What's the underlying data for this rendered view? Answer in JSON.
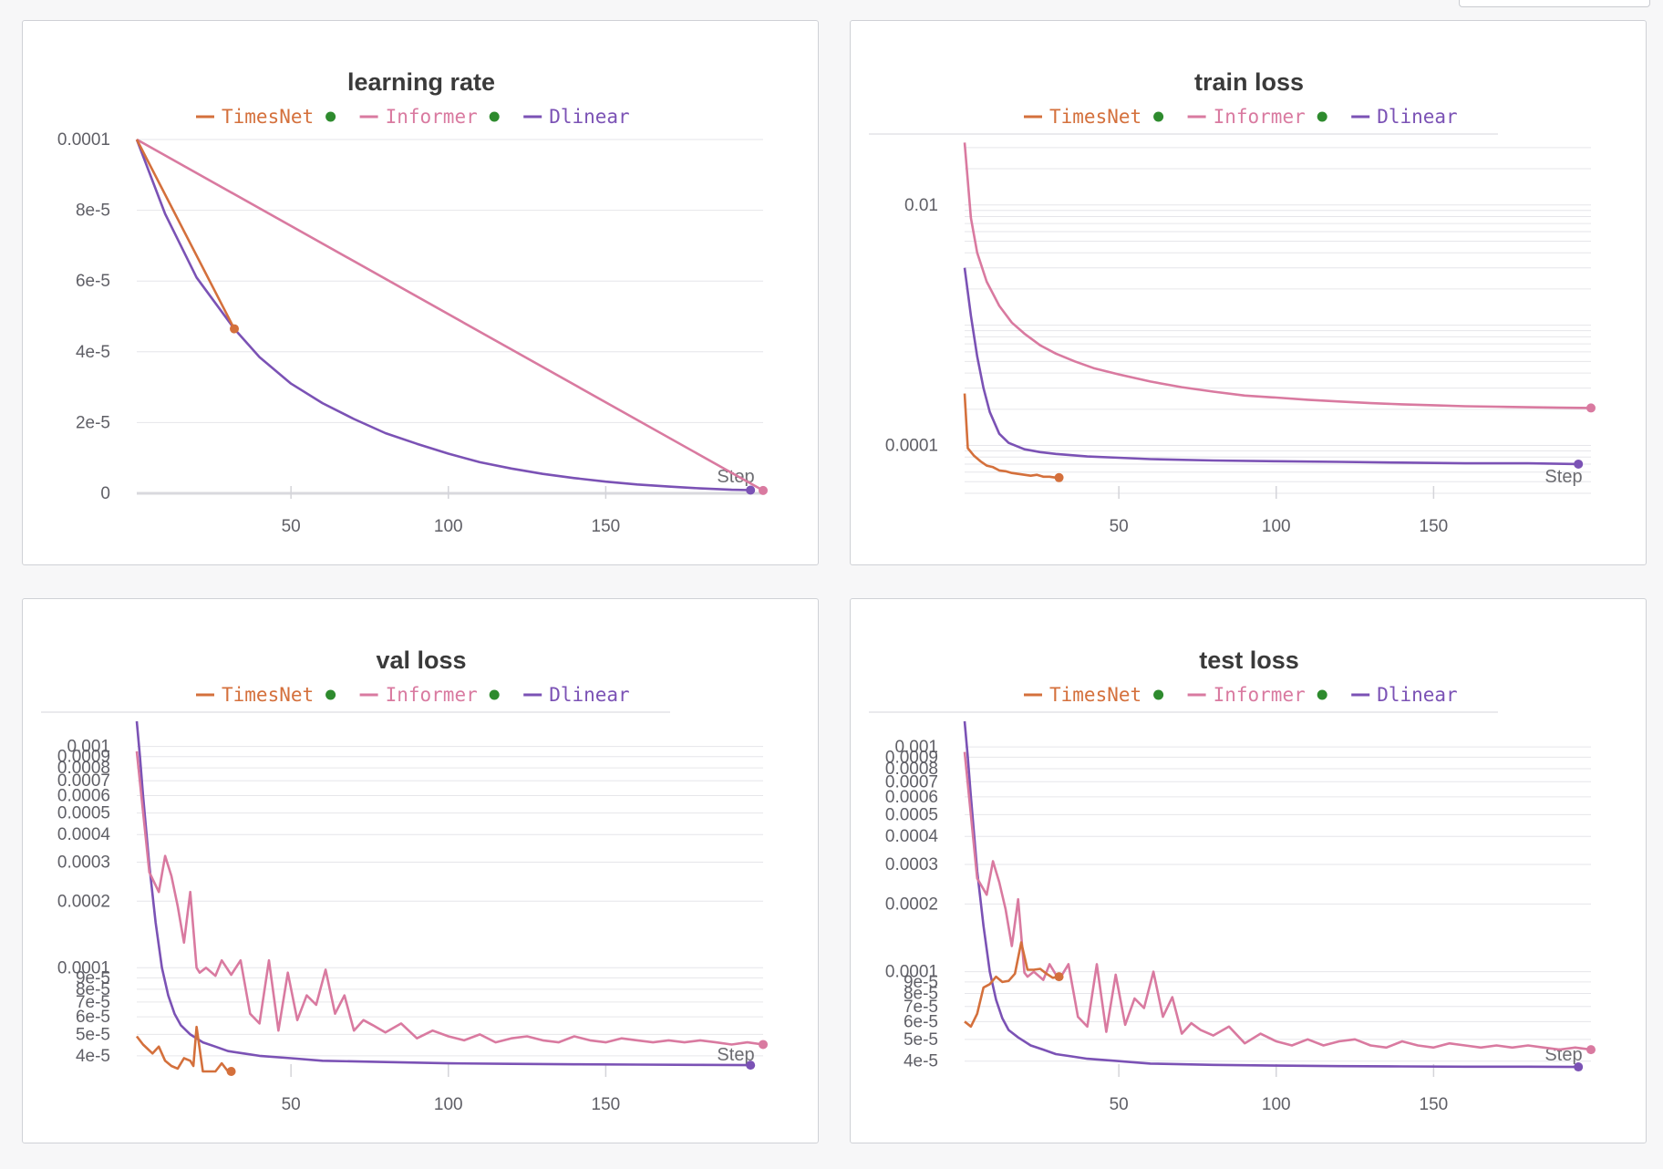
{
  "colors": {
    "TimesNet": "#d4703c",
    "Informer": "#d97aa0",
    "Dlinear": "#7b52b5",
    "legend_dot": "#2e8b2e",
    "grid": "#e6e6ea"
  },
  "x_axis_label": "Step",
  "chart_data": [
    {
      "type": "line",
      "title": "learning rate",
      "xlabel": "Step",
      "ylabel": "",
      "yscale": "linear",
      "xlim": [
        1,
        200
      ],
      "ylim": [
        0,
        0.0001
      ],
      "yticks": [
        {
          "v": 0.0001,
          "label": "0.0001"
        },
        {
          "v": 8e-05,
          "label": "8e-5"
        },
        {
          "v": 6e-05,
          "label": "6e-5"
        },
        {
          "v": 4e-05,
          "label": "4e-5"
        },
        {
          "v": 2e-05,
          "label": "2e-5"
        },
        {
          "v": 0,
          "label": "0"
        }
      ],
      "xticks": [
        50,
        100,
        150
      ],
      "legend": {
        "placement": "top",
        "entries": [
          "TimesNet",
          "Informer",
          "Dlinear"
        ],
        "active_dots": [
          true,
          true,
          false
        ]
      },
      "series": [
        {
          "name": "TimesNet",
          "x": [
            1,
            32
          ],
          "y": [
            0.0001,
            4.65e-05
          ]
        },
        {
          "name": "Informer",
          "x": [
            1,
            200
          ],
          "y": [
            0.0001,
            8e-07
          ]
        },
        {
          "name": "Dlinear",
          "x": [
            1,
            10,
            20,
            32,
            40,
            50,
            60,
            70,
            80,
            90,
            100,
            110,
            120,
            130,
            140,
            150,
            160,
            170,
            180,
            190,
            196
          ],
          "y": [
            0.0001,
            7.9e-05,
            6.1e-05,
            4.65e-05,
            3.85e-05,
            3.1e-05,
            2.55e-05,
            2.1e-05,
            1.7e-05,
            1.4e-05,
            1.12e-05,
            8.8e-06,
            7e-06,
            5.5e-06,
            4.3e-06,
            3.3e-06,
            2.5e-06,
            1.9e-06,
            1.4e-06,
            1e-06,
            9e-07
          ]
        }
      ],
      "endpoints": [
        "TimesNet",
        "Informer",
        "Dlinear"
      ]
    },
    {
      "type": "line",
      "title": "train loss",
      "xlabel": "Step",
      "ylabel": "",
      "yscale": "log",
      "xlim": [
        1,
        200
      ],
      "ylim": [
        4e-05,
        0.035
      ],
      "yticks": [
        {
          "v": 0.01,
          "label": "0.01"
        },
        {
          "v": 0.0001,
          "label": "0.0001"
        }
      ],
      "xticks": [
        50,
        100,
        150
      ],
      "legend": {
        "placement": "top",
        "entries": [
          "TimesNet",
          "Informer",
          "Dlinear"
        ],
        "active_dots": [
          true,
          true,
          false
        ]
      },
      "series": [
        {
          "name": "TimesNet",
          "x": [
            1,
            2,
            4,
            6,
            8,
            10,
            12,
            14,
            16,
            18,
            20,
            22,
            24,
            26,
            28,
            30,
            31
          ],
          "y": [
            0.00027,
            9.5e-05,
            8.2e-05,
            7.4e-05,
            6.8e-05,
            6.6e-05,
            6.2e-05,
            6.1e-05,
            5.9e-05,
            5.8e-05,
            5.7e-05,
            5.6e-05,
            5.7e-05,
            5.5e-05,
            5.5e-05,
            5.4e-05,
            5.4e-05
          ]
        },
        {
          "name": "Informer",
          "x": [
            1,
            3,
            5,
            8,
            12,
            16,
            20,
            25,
            30,
            36,
            42,
            50,
            60,
            70,
            80,
            90,
            100,
            110,
            120,
            130,
            140,
            150,
            160,
            170,
            180,
            190,
            200
          ],
          "y": [
            0.033,
            0.0078,
            0.004,
            0.0023,
            0.00145,
            0.00105,
            0.00085,
            0.00068,
            0.00058,
            0.0005,
            0.00044,
            0.00039,
            0.00034,
            0.000305,
            0.00028,
            0.00026,
            0.00025,
            0.00024,
            0.000232,
            0.000225,
            0.00022,
            0.000216,
            0.000212,
            0.00021,
            0.000208,
            0.000206,
            0.000205
          ]
        },
        {
          "name": "Dlinear",
          "x": [
            1,
            3,
            5,
            7,
            9,
            12,
            15,
            20,
            25,
            30,
            40,
            50,
            60,
            80,
            100,
            120,
            140,
            160,
            180,
            196
          ],
          "y": [
            0.003,
            0.0012,
            0.00055,
            0.0003,
            0.00019,
            0.000125,
            0.000105,
            9.3e-05,
            8.8e-05,
            8.5e-05,
            8.1e-05,
            7.9e-05,
            7.7e-05,
            7.5e-05,
            7.4e-05,
            7.3e-05,
            7.2e-05,
            7.1e-05,
            7.1e-05,
            7e-05
          ]
        }
      ],
      "endpoints": [
        "TimesNet",
        "Informer",
        "Dlinear"
      ]
    },
    {
      "type": "line",
      "title": "val loss",
      "xlabel": "Step",
      "ylabel": "",
      "yscale": "log",
      "xlim": [
        1,
        200
      ],
      "ylim": [
        3.4e-05,
        0.00135
      ],
      "yticks": [
        {
          "v": 0.001,
          "label": "0.001"
        },
        {
          "v": 0.0009,
          "label": "0.0009"
        },
        {
          "v": 0.0008,
          "label": "0.0008"
        },
        {
          "v": 0.0007,
          "label": "0.0007"
        },
        {
          "v": 0.0006,
          "label": "0.0006"
        },
        {
          "v": 0.0005,
          "label": "0.0005"
        },
        {
          "v": 0.0004,
          "label": "0.0004"
        },
        {
          "v": 0.0003,
          "label": "0.0003"
        },
        {
          "v": 0.0002,
          "label": "0.0002"
        },
        {
          "v": 0.0001,
          "label": "0.0001"
        },
        {
          "v": 9e-05,
          "label": "9e-5"
        },
        {
          "v": 8e-05,
          "label": "8e-5"
        },
        {
          "v": 7e-05,
          "label": "7e-5"
        },
        {
          "v": 6e-05,
          "label": "6e-5"
        },
        {
          "v": 5e-05,
          "label": "5e-5"
        },
        {
          "v": 4e-05,
          "label": "4e-5"
        }
      ],
      "xticks": [
        50,
        100,
        150
      ],
      "legend": {
        "placement": "top",
        "entries": [
          "TimesNet",
          "Informer",
          "Dlinear"
        ],
        "active_dots": [
          true,
          true,
          false
        ]
      },
      "series": [
        {
          "name": "TimesNet",
          "x": [
            1,
            3,
            6,
            8,
            10,
            12,
            14,
            16,
            18,
            19,
            20,
            22,
            24,
            26,
            28,
            30,
            31
          ],
          "y": [
            4.9e-05,
            4.5e-05,
            4.1e-05,
            4.4e-05,
            3.8e-05,
            3.6e-05,
            3.5e-05,
            3.9e-05,
            3.8e-05,
            3.6e-05,
            5.4e-05,
            3.4e-05,
            3.4e-05,
            3.4e-05,
            3.7e-05,
            3.4e-05,
            3.4e-05
          ]
        },
        {
          "name": "Informer",
          "x": [
            1,
            5,
            8,
            10,
            12,
            14,
            16,
            18,
            20,
            21,
            23,
            26,
            28,
            31,
            34,
            37,
            40,
            43,
            46,
            49,
            52,
            55,
            58,
            61,
            64,
            67,
            70,
            73,
            76,
            80,
            85,
            90,
            95,
            100,
            105,
            110,
            115,
            120,
            125,
            130,
            135,
            140,
            145,
            150,
            155,
            160,
            165,
            170,
            175,
            180,
            185,
            190,
            195,
            200
          ],
          "y": [
            0.00095,
            0.00027,
            0.00022,
            0.00032,
            0.00026,
            0.00019,
            0.00013,
            0.00022,
            0.0001,
            9.5e-05,
            0.0001,
            9.2e-05,
            0.000108,
            9.3e-05,
            0.000108,
            6.2e-05,
            5.6e-05,
            0.000108,
            5.2e-05,
            9.5e-05,
            5.8e-05,
            7.5e-05,
            6.8e-05,
            9.8e-05,
            6.2e-05,
            7.5e-05,
            5.2e-05,
            5.8e-05,
            5.5e-05,
            5.1e-05,
            5.6e-05,
            4.8e-05,
            5.2e-05,
            4.9e-05,
            4.7e-05,
            5e-05,
            4.6e-05,
            4.8e-05,
            4.9e-05,
            4.7e-05,
            4.6e-05,
            4.9e-05,
            4.7e-05,
            4.6e-05,
            4.8e-05,
            4.7e-05,
            4.6e-05,
            4.7e-05,
            4.6e-05,
            4.7e-05,
            4.6e-05,
            4.5e-05,
            4.6e-05,
            4.5e-05
          ]
        },
        {
          "name": "Dlinear",
          "x": [
            1,
            2,
            3,
            5,
            7,
            9,
            11,
            13,
            15,
            18,
            22,
            26,
            30,
            35,
            40,
            50,
            60,
            80,
            100,
            120,
            140,
            160,
            180,
            196
          ],
          "y": [
            0.0013,
            0.0009,
            0.0006,
            0.00029,
            0.00016,
            0.0001,
            7.5e-05,
            6.2e-05,
            5.5e-05,
            5e-05,
            4.6e-05,
            4.4e-05,
            4.2e-05,
            4.1e-05,
            4e-05,
            3.9e-05,
            3.8e-05,
            3.75e-05,
            3.7e-05,
            3.68e-05,
            3.66e-05,
            3.65e-05,
            3.64e-05,
            3.63e-05
          ]
        }
      ],
      "endpoints": [
        "TimesNet",
        "Informer",
        "Dlinear"
      ]
    },
    {
      "type": "line",
      "title": "test loss",
      "xlabel": "Step",
      "ylabel": "",
      "yscale": "log",
      "xlim": [
        1,
        200
      ],
      "ylim": [
        3.6e-05,
        0.00135
      ],
      "yticks": [
        {
          "v": 0.001,
          "label": "0.001"
        },
        {
          "v": 0.0009,
          "label": "0.0009"
        },
        {
          "v": 0.0008,
          "label": "0.0008"
        },
        {
          "v": 0.0007,
          "label": "0.0007"
        },
        {
          "v": 0.0006,
          "label": "0.0006"
        },
        {
          "v": 0.0005,
          "label": "0.0005"
        },
        {
          "v": 0.0004,
          "label": "0.0004"
        },
        {
          "v": 0.0003,
          "label": "0.0003"
        },
        {
          "v": 0.0002,
          "label": "0.0002"
        },
        {
          "v": 0.0001,
          "label": "0.0001"
        },
        {
          "v": 9e-05,
          "label": "9e-5"
        },
        {
          "v": 8e-05,
          "label": "8e-5"
        },
        {
          "v": 7e-05,
          "label": "7e-5"
        },
        {
          "v": 6e-05,
          "label": "6e-5"
        },
        {
          "v": 5e-05,
          "label": "5e-5"
        },
        {
          "v": 4e-05,
          "label": "4e-5"
        }
      ],
      "xticks": [
        50,
        100,
        150
      ],
      "legend": {
        "placement": "top",
        "entries": [
          "TimesNet",
          "Informer",
          "Dlinear"
        ],
        "active_dots": [
          true,
          true,
          false
        ]
      },
      "series": [
        {
          "name": "TimesNet",
          "x": [
            1,
            3,
            5,
            7,
            9,
            11,
            13,
            15,
            17,
            19,
            21,
            23,
            25,
            27,
            29,
            31
          ],
          "y": [
            6e-05,
            5.7e-05,
            6.5e-05,
            8.5e-05,
            8.8e-05,
            9.5e-05,
            9e-05,
            9.1e-05,
            9.8e-05,
            0.000135,
            0.000102,
            0.000102,
            0.000103,
            9.8e-05,
            9.4e-05,
            9.5e-05
          ]
        },
        {
          "name": "Informer",
          "x": [
            1,
            5,
            8,
            10,
            12,
            14,
            16,
            18,
            20,
            21,
            23,
            26,
            28,
            31,
            34,
            37,
            40,
            43,
            46,
            49,
            52,
            55,
            58,
            61,
            64,
            67,
            70,
            73,
            76,
            80,
            85,
            90,
            95,
            100,
            105,
            110,
            115,
            120,
            125,
            130,
            135,
            140,
            145,
            150,
            155,
            160,
            165,
            170,
            175,
            180,
            185,
            190,
            195,
            200
          ],
          "y": [
            0.00095,
            0.00026,
            0.00022,
            0.00031,
            0.00025,
            0.00019,
            0.00013,
            0.00021,
            9.9e-05,
            9.5e-05,
            0.0001,
            9.2e-05,
            0.000108,
            9.2e-05,
            0.000108,
            6.3e-05,
            5.7e-05,
            0.000108,
            5.4e-05,
            9.7e-05,
            5.8e-05,
            7.6e-05,
            6.9e-05,
            0.0001,
            6.3e-05,
            7.7e-05,
            5.3e-05,
            5.9e-05,
            5.5e-05,
            5.2e-05,
            5.7e-05,
            4.8e-05,
            5.3e-05,
            4.9e-05,
            4.7e-05,
            5e-05,
            4.7e-05,
            4.9e-05,
            5e-05,
            4.7e-05,
            4.6e-05,
            4.9e-05,
            4.7e-05,
            4.6e-05,
            4.8e-05,
            4.7e-05,
            4.6e-05,
            4.7e-05,
            4.6e-05,
            4.7e-05,
            4.6e-05,
            4.5e-05,
            4.6e-05,
            4.5e-05
          ]
        },
        {
          "name": "Dlinear",
          "x": [
            1,
            2,
            3,
            5,
            7,
            9,
            11,
            13,
            15,
            18,
            22,
            26,
            30,
            35,
            40,
            50,
            60,
            80,
            100,
            120,
            140,
            160,
            180,
            196
          ],
          "y": [
            0.0013,
            0.0009,
            0.0006,
            0.00028,
            0.00016,
            0.0001,
            7.5e-05,
            6.2e-05,
            5.5e-05,
            5.1e-05,
            4.7e-05,
            4.5e-05,
            4.3e-05,
            4.2e-05,
            4.1e-05,
            4e-05,
            3.9e-05,
            3.85e-05,
            3.82e-05,
            3.8e-05,
            3.79e-05,
            3.78e-05,
            3.78e-05,
            3.77e-05
          ]
        }
      ],
      "endpoints": [
        "TimesNet",
        "Informer",
        "Dlinear"
      ]
    }
  ]
}
